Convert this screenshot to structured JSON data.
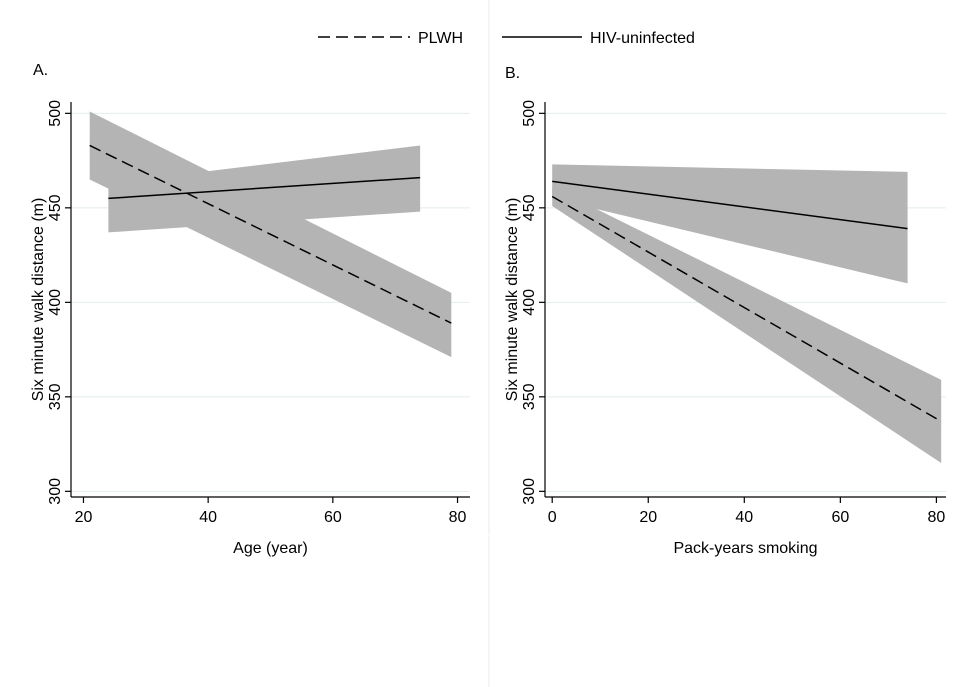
{
  "legend": {
    "placement": "top-center",
    "items": [
      {
        "label": "PLWH",
        "style": "dashed"
      },
      {
        "label": "HIV-uninfected",
        "style": "solid"
      }
    ]
  },
  "colors": {
    "line": "#000000",
    "ci_band": "#b4b4b4",
    "grid": "#e3eeee",
    "divider": "#e6eeee"
  },
  "chart_data": [
    {
      "type": "line",
      "panel_label": "A.",
      "title": "",
      "xlabel": "Age (year)",
      "ylabel": "Six minute walk distance (m)",
      "xlim": [
        18,
        82
      ],
      "ylim": [
        297,
        506
      ],
      "x_ticks": [
        "20",
        "40",
        "60",
        "80"
      ],
      "y_ticks": [
        "300",
        "350",
        "400",
        "450",
        "500"
      ],
      "grid": "horizontal",
      "series": [
        {
          "name": "PLWH",
          "style": "dashed",
          "x": [
            21,
            79
          ],
          "y": [
            483,
            389
          ],
          "ci_lower": [
            465,
            371
          ],
          "ci_upper": [
            501,
            405
          ]
        },
        {
          "name": "HIV-uninfected",
          "style": "solid",
          "x": [
            24,
            74
          ],
          "y": [
            455,
            466
          ],
          "ci_lower": [
            437,
            448
          ],
          "ci_upper": [
            463,
            483
          ]
        }
      ]
    },
    {
      "type": "line",
      "panel_label": "B.",
      "title": "",
      "xlabel": "Pack-years smoking",
      "ylabel": "Six minute walk distance (m)",
      "xlim": [
        -1.5,
        82
      ],
      "ylim": [
        297,
        506
      ],
      "x_ticks": [
        "0",
        "20",
        "40",
        "60",
        "80"
      ],
      "y_ticks": [
        "300",
        "350",
        "400",
        "450",
        "500"
      ],
      "grid": "horizontal",
      "series": [
        {
          "name": "PLWH",
          "style": "dashed",
          "x": [
            0,
            81
          ],
          "y": [
            456,
            337
          ],
          "ci_lower": [
            451,
            315
          ],
          "ci_upper": [
            461,
            359
          ]
        },
        {
          "name": "HIV-uninfected",
          "style": "solid",
          "x": [
            0,
            74
          ],
          "y": [
            464,
            439
          ],
          "ci_lower": [
            455,
            410
          ],
          "ci_upper": [
            473,
            469
          ]
        }
      ]
    }
  ]
}
